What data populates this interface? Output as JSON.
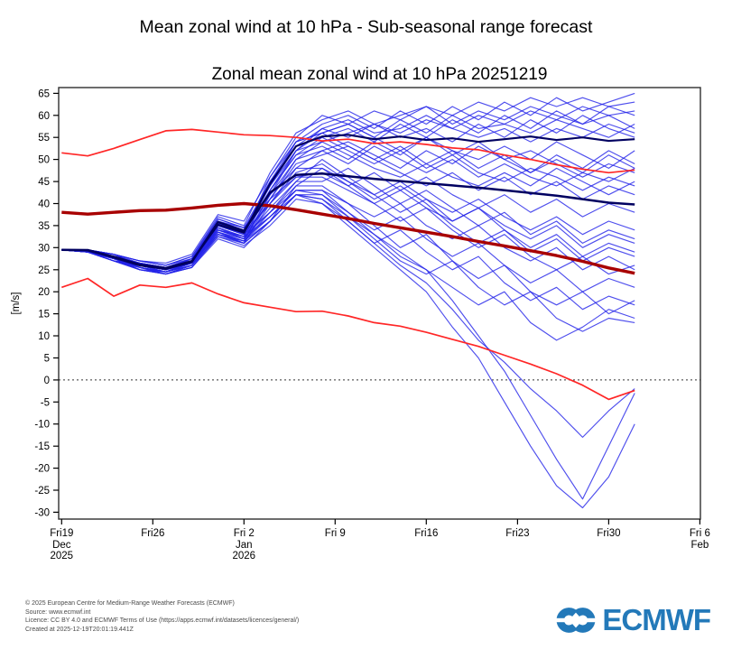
{
  "page": {
    "title": "Mean zonal wind at 10 hPa - Sub-seasonal range forecast"
  },
  "chart": {
    "title": "Zonal mean zonal wind at 10 hPa 20251219"
  },
  "footer": {
    "lines": [
      "© 2025 European Centre for Medium-Range Weather Forecasts (ECMWF)",
      "Source: www.ecmwf.int",
      "Licence: CC BY 4.0 and ECMWF Terms of Use (https://apps.ecmwf.int/datasets/licences/general/)",
      "Created at 2025-12-19T20:01:19.441Z"
    ]
  },
  "logo": {
    "text": "ECMWF",
    "color": "#2379b9"
  },
  "chart_data": {
    "type": "line",
    "title": "Zonal mean zonal wind at 10 hPa 20251219",
    "xlabel": "",
    "ylabel": "[m/s]",
    "ylim": [
      -31.5,
      66.3
    ],
    "xlim_days": [
      0,
      49
    ],
    "grid": false,
    "zero_line": true,
    "y_ticks": [
      -30,
      -25,
      -20,
      -15,
      -10,
      -5,
      0,
      5,
      10,
      15,
      20,
      25,
      30,
      35,
      40,
      45,
      50,
      55,
      60,
      65
    ],
    "x_ticks": [
      {
        "day": 0,
        "label": "Fri19",
        "sub": [
          "Dec",
          "2025"
        ]
      },
      {
        "day": 7,
        "label": "Fri26",
        "sub": []
      },
      {
        "day": 14,
        "label": "Fri 2",
        "sub": [
          "Jan",
          "2026"
        ]
      },
      {
        "day": 21,
        "label": "Fri 9",
        "sub": []
      },
      {
        "day": 28,
        "label": "Fri16",
        "sub": []
      },
      {
        "day": 35,
        "label": "Fri23",
        "sub": []
      },
      {
        "day": 42,
        "label": "Fri30",
        "sub": []
      },
      {
        "day": 49,
        "label": "Fri 6",
        "sub": [
          "Feb"
        ]
      }
    ],
    "time_days": [
      0,
      2,
      4,
      6,
      8,
      10,
      12,
      14,
      16,
      18,
      20,
      22,
      24,
      26,
      28,
      30,
      32,
      34,
      36,
      38,
      40,
      42,
      44
    ],
    "series": [
      {
        "name": "climate-90th-percentile",
        "color": "#ff2626",
        "width": 1.7,
        "values": [
          51.5,
          50.8,
          52.5,
          54.5,
          56.5,
          56.8,
          56.2,
          55.6,
          55.4,
          55.0,
          54.2,
          54.6,
          53.6,
          54.0,
          53.4,
          52.6,
          52.2,
          51.0,
          50.0,
          48.8,
          47.8,
          47.0,
          47.6
        ]
      },
      {
        "name": "climate-10th-percentile",
        "color": "#ff2626",
        "width": 1.7,
        "values": [
          21.0,
          23.0,
          19.0,
          21.5,
          21.0,
          22.0,
          19.5,
          17.5,
          16.5,
          15.5,
          15.6,
          14.5,
          13.0,
          12.2,
          10.8,
          9.2,
          7.6,
          5.6,
          3.6,
          1.4,
          -1.2,
          -4.4,
          -2.4
        ]
      },
      {
        "name": "climate-mean",
        "color": "#a80000",
        "width": 3.4,
        "values": [
          38.0,
          37.6,
          38.0,
          38.4,
          38.5,
          39.0,
          39.6,
          40.0,
          39.5,
          38.6,
          37.6,
          36.6,
          35.5,
          34.5,
          33.5,
          32.5,
          31.4,
          30.4,
          29.3,
          28.2,
          26.9,
          25.4,
          24.2
        ]
      },
      {
        "name": "ensemble-control",
        "color": "#000060",
        "width": 2.1,
        "values": [
          29.5,
          29.5,
          28.0,
          26.2,
          25.4,
          27.0,
          35.2,
          33.4,
          44.5,
          53.0,
          55.2,
          55.6,
          54.6,
          55.2,
          54.4,
          54.8,
          54.0,
          54.6,
          55.2,
          54.4,
          55.0,
          54.2,
          54.6
        ]
      },
      {
        "name": "ensemble-median",
        "color": "#000060",
        "width": 2.5,
        "values": [
          29.5,
          29.4,
          27.8,
          26.0,
          25.2,
          26.8,
          35.8,
          33.8,
          42.5,
          46.5,
          46.8,
          46.2,
          45.6,
          45.1,
          44.6,
          44.1,
          43.6,
          43.0,
          42.4,
          41.8,
          41.0,
          40.2,
          39.8
        ]
      }
    ],
    "ensemble": {
      "name": "ensemble-members",
      "color": "#2222e8",
      "width": 1.15,
      "opacity": 0.8,
      "members": [
        [
          29.5,
          29.5,
          28,
          26.5,
          25.5,
          27,
          36,
          34,
          44,
          54,
          58,
          60,
          57,
          61,
          58,
          62,
          59,
          63,
          60,
          64,
          61,
          63,
          65
        ],
        [
          29.5,
          29,
          27.5,
          25.5,
          24.5,
          26,
          35,
          33,
          46,
          55,
          60,
          58,
          61,
          59,
          62,
          60,
          63,
          61,
          64,
          62,
          64,
          62,
          63
        ],
        [
          29.5,
          29.5,
          28.5,
          27,
          26,
          28,
          37,
          35,
          47,
          56,
          59,
          61,
          58,
          60,
          62,
          58,
          61,
          59,
          62,
          60,
          58,
          60,
          57
        ],
        [
          29.5,
          29,
          27,
          25,
          24,
          25.5,
          33,
          31.5,
          42,
          52,
          56,
          58,
          55,
          59,
          56,
          60,
          57,
          58,
          56,
          59,
          57,
          55,
          58
        ],
        [
          29.5,
          29.5,
          28,
          26,
          25,
          27.5,
          36.5,
          34.5,
          45,
          53,
          57,
          55,
          58,
          56,
          59,
          57,
          60,
          58,
          61,
          59,
          62,
          60,
          61
        ],
        [
          29.5,
          29,
          27.5,
          26.5,
          25.5,
          27,
          35.5,
          33.5,
          43,
          51,
          55,
          57,
          54,
          58,
          55,
          59,
          56,
          60,
          57,
          61,
          58,
          62,
          60
        ],
        [
          29.5,
          29.5,
          28.5,
          26.5,
          25,
          26.5,
          34.5,
          32,
          41,
          50,
          54,
          56,
          58,
          55,
          57,
          54,
          58,
          55,
          59,
          56,
          60,
          57,
          55
        ],
        [
          29.5,
          29,
          27,
          25.5,
          24.5,
          26.5,
          35,
          33.5,
          44,
          52,
          57,
          59,
          56,
          57,
          60,
          57,
          55,
          57,
          54,
          57,
          55,
          58,
          56
        ],
        [
          29.5,
          29.5,
          28,
          26,
          25.5,
          27,
          34,
          32.5,
          43,
          51,
          53,
          50,
          54,
          51,
          55,
          52,
          50,
          53,
          50,
          54,
          51,
          48,
          52
        ],
        [
          29.5,
          29,
          27.5,
          25.5,
          24,
          25.5,
          32.5,
          31,
          40,
          48,
          52,
          54,
          51,
          48,
          52,
          49,
          53,
          50,
          47,
          51,
          48,
          52,
          49
        ],
        [
          29.5,
          29.5,
          28.5,
          27,
          26.5,
          28.5,
          37.5,
          36,
          46,
          54,
          56,
          53,
          50,
          53,
          49,
          52,
          48,
          51,
          47,
          50,
          47,
          51,
          48
        ],
        [
          29.5,
          29,
          27,
          25,
          24.5,
          26,
          33.5,
          32,
          42,
          50,
          52,
          49,
          53,
          50,
          47,
          50,
          46,
          49,
          46,
          44,
          47,
          45,
          48
        ],
        [
          29.5,
          29.5,
          28,
          26.5,
          25,
          27,
          35,
          33,
          44,
          53,
          55,
          52,
          49,
          52,
          48,
          51,
          47,
          45,
          48,
          46,
          43,
          46,
          44
        ],
        [
          29.5,
          29,
          27.5,
          26,
          24.5,
          26.5,
          34.5,
          32.5,
          43,
          52,
          54,
          51,
          48,
          46,
          49,
          46,
          44,
          47,
          44,
          48,
          45,
          42,
          45
        ],
        [
          29.5,
          29.5,
          28.5,
          26,
          25.5,
          27.5,
          36,
          34,
          45,
          54,
          56,
          58,
          55,
          52,
          55,
          51,
          54,
          50,
          52,
          49,
          46,
          49,
          47
        ],
        [
          29.5,
          29,
          27,
          25.5,
          24,
          26,
          33,
          31,
          41,
          49,
          51,
          53,
          50,
          47,
          44,
          47,
          43,
          46,
          42,
          45,
          41,
          44,
          42
        ],
        [
          29.5,
          29.5,
          28,
          26.5,
          25.5,
          27.5,
          35.5,
          33.5,
          40,
          46,
          47,
          44,
          47,
          43,
          46,
          42,
          39,
          42,
          38,
          41,
          37,
          40,
          38
        ],
        [
          29.5,
          29,
          27.5,
          25,
          24,
          25.5,
          32,
          30,
          36,
          44,
          48,
          45,
          42,
          45,
          41,
          38,
          41,
          37,
          34,
          37,
          33,
          36,
          34
        ],
        [
          29.5,
          29.5,
          28.5,
          27,
          26,
          28,
          36.5,
          34.5,
          41,
          46,
          46,
          43,
          40,
          43,
          39,
          36,
          39,
          35,
          32,
          35,
          30,
          33,
          31
        ],
        [
          29.5,
          29,
          27,
          26,
          25,
          26.5,
          33.5,
          31.5,
          38,
          45,
          45,
          48,
          44,
          40,
          43,
          39,
          35,
          38,
          33,
          36,
          31,
          34,
          32
        ],
        [
          29.5,
          29.5,
          28,
          25.5,
          24.5,
          26,
          34,
          32,
          39,
          45,
          50,
          46,
          42,
          38,
          41,
          36,
          39,
          34,
          30,
          33,
          28,
          31,
          29
        ],
        [
          29.5,
          29,
          27.5,
          26.5,
          25.5,
          27,
          35,
          33,
          40,
          47,
          49,
          45,
          41,
          44,
          40,
          35,
          31,
          34,
          29,
          32,
          27,
          30,
          28
        ],
        [
          29.5,
          29.5,
          28.5,
          26,
          25,
          27.5,
          36,
          34.5,
          42,
          48,
          48,
          44,
          40,
          36,
          39,
          34,
          30,
          33,
          28,
          25,
          28,
          24,
          26
        ],
        [
          29.5,
          29,
          27,
          25.5,
          24.5,
          26.5,
          33,
          31.5,
          37,
          43,
          43,
          40,
          37,
          40,
          35,
          32,
          35,
          30,
          27,
          30,
          25,
          28,
          25
        ],
        [
          29.5,
          29.5,
          28,
          26.5,
          25,
          27,
          34.5,
          32.5,
          38,
          43,
          42,
          38,
          34,
          37,
          32,
          28,
          31,
          26,
          22,
          25,
          20,
          23,
          21
        ],
        [
          29.5,
          29,
          27.5,
          25,
          24,
          26,
          32.5,
          30.5,
          35,
          41,
          40,
          36,
          31,
          34,
          29,
          25,
          28,
          22,
          18,
          21,
          16,
          19,
          17
        ],
        [
          29.5,
          29.5,
          28.5,
          27,
          26,
          27.5,
          35,
          33,
          38,
          44,
          44,
          40,
          35,
          30,
          33,
          27,
          23,
          26,
          20,
          17,
          20,
          15,
          18
        ],
        [
          29.5,
          29,
          27,
          26,
          24.5,
          26.5,
          33.5,
          31,
          36,
          42,
          41,
          37,
          32,
          27,
          24,
          27,
          21,
          17,
          20,
          14,
          11,
          14,
          13
        ],
        [
          29.5,
          29.5,
          28,
          25.5,
          24.5,
          27,
          34,
          32,
          37,
          42,
          42,
          37,
          33,
          29,
          25,
          21,
          17,
          20,
          13,
          9,
          12,
          16,
          14
        ],
        [
          29.5,
          29,
          27.5,
          26,
          25,
          26.5,
          33,
          31,
          36,
          42,
          40,
          35,
          30,
          25,
          20,
          12,
          5,
          -5,
          -15,
          -24,
          -29,
          -22,
          -10
        ],
        [
          29.5,
          29.5,
          28,
          26.5,
          25.5,
          27,
          34,
          32.5,
          37,
          43,
          43,
          38,
          33,
          28,
          25,
          18,
          10,
          2,
          -8,
          -18,
          -27,
          -15,
          -3
        ],
        [
          29.5,
          29,
          27.5,
          26,
          25,
          27,
          33.5,
          31.5,
          36,
          42,
          41,
          36,
          31,
          26,
          22,
          16,
          9,
          4,
          -2,
          -7,
          -13,
          -7,
          -2
        ]
      ]
    }
  }
}
